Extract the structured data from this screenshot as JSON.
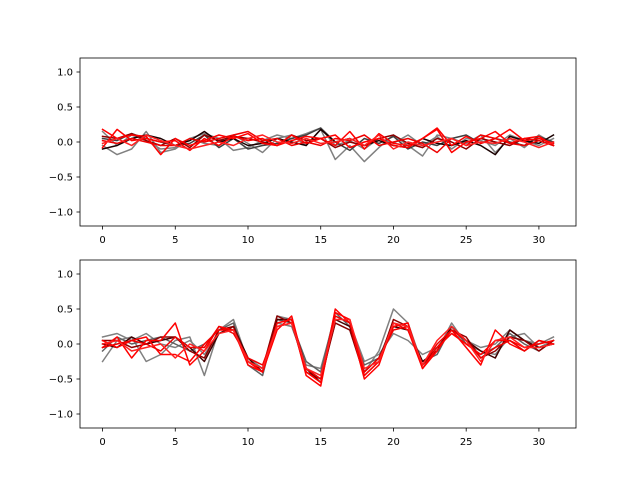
{
  "chart_data": [
    {
      "type": "line",
      "title": "",
      "xlabel": "",
      "ylabel": "",
      "xlim": [
        -1.55,
        32.55
      ],
      "ylim": [
        -1.2,
        1.2
      ],
      "xticks": [
        0,
        5,
        10,
        15,
        20,
        25,
        30
      ],
      "yticks": [
        -1.0,
        -0.5,
        0.0,
        0.5,
        1.0
      ],
      "xtick_labels": [
        "0",
        "5",
        "10",
        "15",
        "20",
        "25",
        "30"
      ],
      "ytick_labels": [
        "−1.0",
        "−0.5",
        "0.0",
        "0.5",
        "1.0"
      ],
      "x": [
        0,
        1,
        2,
        3,
        4,
        5,
        6,
        7,
        8,
        9,
        10,
        11,
        12,
        13,
        14,
        15,
        16,
        17,
        18,
        19,
        20,
        21,
        22,
        23,
        24,
        25,
        26,
        27,
        28,
        29,
        30,
        31
      ],
      "series": [
        {
          "color": "#808080",
          "values": [
            0.15,
            -0.05,
            0.1,
            0.02,
            -0.1,
            -0.08,
            0.05,
            0.12,
            0.05,
            -0.12,
            -0.08,
            0.02,
            0.1,
            0.05,
            0.12,
            0.2,
            -0.05,
            0.02,
            -0.1,
            0.05,
            -0.02,
            0.1,
            -0.05,
            0.08,
            -0.1,
            0.05,
            0.02,
            -0.05,
            0.1,
            0.02,
            -0.05,
            0.05
          ]
        },
        {
          "color": "#808080",
          "values": [
            -0.05,
            -0.18,
            -0.1,
            0.15,
            -0.15,
            -0.1,
            0.05,
            -0.02,
            -0.05,
            0.1,
            -0.02,
            -0.15,
            0.05,
            0.1,
            -0.05,
            0.18,
            -0.25,
            -0.05,
            -0.28,
            -0.08,
            0.1,
            -0.05,
            -0.2,
            0.1,
            0.05,
            -0.02,
            0.1,
            -0.15,
            0.05,
            -0.08,
            0.1,
            -0.02
          ]
        },
        {
          "color": "#404040",
          "values": [
            0.05,
            0.02,
            0.12,
            0.05,
            0.0,
            -0.05,
            -0.02,
            0.1,
            -0.08,
            0.05,
            -0.1,
            -0.05,
            -0.02,
            0.05,
            0.1,
            0.2,
            0.0,
            -0.12,
            0.05,
            -0.02,
            0.08,
            -0.1,
            0.0,
            -0.05,
            0.05,
            0.1,
            -0.02,
            0.05,
            0.0,
            -0.05,
            0.08,
            0.0
          ]
        },
        {
          "color": "#1a0000",
          "values": [
            -0.1,
            -0.05,
            0.05,
            0.1,
            0.05,
            -0.05,
            0.02,
            0.15,
            0.0,
            0.05,
            -0.05,
            -0.02,
            0.05,
            0.0,
            -0.05,
            0.18,
            0.0,
            0.05,
            -0.05,
            0.02,
            -0.05,
            -0.08,
            0.05,
            -0.02,
            -0.05,
            0.02,
            -0.05,
            -0.18,
            0.08,
            0.02,
            -0.02,
            0.1
          ]
        },
        {
          "color": "#8b0000",
          "values": [
            0.08,
            0.05,
            0.12,
            0.02,
            -0.05,
            0.05,
            -0.08,
            0.1,
            0.02,
            0.08,
            0.05,
            0.0,
            -0.05,
            0.1,
            0.02,
            0.05,
            -0.08,
            0.0,
            -0.05,
            0.05,
            0.1,
            -0.02,
            -0.08,
            0.05,
            0.0,
            -0.1,
            0.05,
            0.0,
            -0.05,
            0.05,
            0.02,
            -0.05
          ]
        },
        {
          "color": "#ff0000",
          "values": [
            0.18,
            0.05,
            0.1,
            0.08,
            -0.18,
            0.05,
            -0.05,
            0.02,
            0.1,
            0.05,
            0.12,
            -0.02,
            -0.05,
            0.02,
            0.08,
            0.05,
            -0.05,
            0.15,
            -0.1,
            0.12,
            -0.02,
            -0.05,
            0.05,
            0.2,
            -0.05,
            0.08,
            -0.02,
            0.05,
            0.18,
            0.02,
            0.05,
            -0.02
          ]
        },
        {
          "color": "#ff0000",
          "values": [
            -0.08,
            0.18,
            0.02,
            0.05,
            0.0,
            0.02,
            -0.12,
            0.05,
            -0.05,
            0.08,
            0.02,
            0.05,
            -0.05,
            0.1,
            -0.02,
            0.05,
            0.1,
            -0.08,
            0.0,
            0.05,
            -0.05,
            -0.08,
            0.05,
            0.18,
            -0.15,
            0.0,
            0.05,
            0.15,
            -0.02,
            0.05,
            0.08,
            -0.05
          ]
        },
        {
          "color": "#ee0000",
          "values": [
            0.02,
            -0.02,
            0.05,
            0.0,
            -0.05,
            -0.05,
            0.05,
            0.0,
            0.05,
            0.1,
            0.15,
            0.02,
            0.05,
            -0.05,
            0.0,
            -0.05,
            0.05,
            0.02,
            0.1,
            -0.05,
            0.0,
            0.05,
            -0.02,
            -0.15,
            0.05,
            -0.05,
            0.1,
            0.05,
            -0.02,
            -0.05,
            0.02,
            -0.05
          ]
        },
        {
          "color": "#ff2020",
          "values": [
            -0.02,
            0.05,
            -0.05,
            0.1,
            0.02,
            -0.05,
            -0.1,
            -0.05,
            0.0,
            -0.05,
            0.05,
            0.1,
            0.0,
            -0.02,
            0.05,
            -0.02,
            0.0,
            0.05,
            -0.05,
            0.1,
            -0.1,
            0.0,
            -0.05,
            0.0,
            0.05,
            -0.05,
            0.0,
            -0.02,
            0.05,
            0.0,
            -0.08,
            0.0
          ]
        }
      ]
    },
    {
      "type": "line",
      "title": "",
      "xlabel": "",
      "ylabel": "",
      "xlim": [
        -1.55,
        32.55
      ],
      "ylim": [
        -1.2,
        1.2
      ],
      "xticks": [
        0,
        5,
        10,
        15,
        20,
        25,
        30
      ],
      "yticks": [
        -1.0,
        -0.5,
        0.0,
        0.5,
        1.0
      ],
      "xtick_labels": [
        "0",
        "5",
        "10",
        "15",
        "20",
        "25",
        "30"
      ],
      "ytick_labels": [
        "−1.0",
        "−0.5",
        "0.0",
        "0.5",
        "1.0"
      ],
      "x": [
        0,
        1,
        2,
        3,
        4,
        5,
        6,
        7,
        8,
        9,
        10,
        11,
        12,
        13,
        14,
        15,
        16,
        17,
        18,
        19,
        20,
        21,
        22,
        23,
        24,
        25,
        26,
        27,
        28,
        29,
        30,
        31
      ],
      "series": [
        {
          "color": "#808080",
          "values": [
            -0.25,
            0.05,
            0.1,
            -0.25,
            -0.15,
            0.05,
            0.1,
            -0.45,
            0.2,
            0.35,
            -0.25,
            -0.4,
            0.4,
            0.35,
            -0.35,
            -0.45,
            0.3,
            0.2,
            -0.4,
            -0.1,
            0.5,
            0.3,
            -0.3,
            -0.1,
            0.3,
            0.0,
            -0.1,
            -0.15,
            0.1,
            0.15,
            -0.05,
            0.05
          ]
        },
        {
          "color": "#808080",
          "values": [
            0.1,
            0.15,
            0.05,
            0.15,
            0.0,
            -0.05,
            0.05,
            -0.15,
            0.15,
            0.25,
            -0.2,
            -0.35,
            0.3,
            0.25,
            -0.3,
            -0.35,
            0.4,
            0.3,
            -0.25,
            -0.15,
            0.15,
            0.05,
            -0.15,
            -0.05,
            0.15,
            0.05,
            -0.05,
            0.0,
            0.2,
            0.05,
            0.0,
            0.1
          ]
        },
        {
          "color": "#606060",
          "values": [
            -0.1,
            0.1,
            0.0,
            0.05,
            0.1,
            0.0,
            -0.1,
            0.0,
            0.2,
            0.3,
            -0.3,
            -0.45,
            0.35,
            0.3,
            -0.25,
            -0.4,
            0.45,
            0.25,
            -0.3,
            -0.2,
            0.3,
            0.2,
            -0.25,
            -0.15,
            0.25,
            0.0,
            -0.15,
            -0.05,
            0.15,
            0.0,
            -0.1,
            0.05
          ]
        },
        {
          "color": "#400000",
          "values": [
            0.0,
            -0.05,
            0.1,
            0.0,
            0.05,
            0.1,
            -0.05,
            -0.25,
            0.15,
            0.25,
            -0.2,
            -0.4,
            0.35,
            0.35,
            -0.35,
            -0.55,
            0.35,
            0.25,
            -0.4,
            -0.2,
            0.25,
            0.2,
            -0.25,
            -0.1,
            0.25,
            0.05,
            -0.1,
            -0.2,
            0.2,
            0.05,
            -0.05,
            0.0
          ]
        },
        {
          "color": "#8b0000",
          "values": [
            0.05,
            0.05,
            -0.05,
            0.0,
            0.1,
            0.1,
            -0.1,
            -0.2,
            0.2,
            0.25,
            -0.25,
            -0.35,
            0.4,
            0.3,
            -0.4,
            -0.5,
            0.3,
            0.2,
            -0.45,
            -0.25,
            0.35,
            0.25,
            -0.3,
            -0.05,
            0.2,
            0.1,
            -0.2,
            -0.1,
            0.1,
            0.05,
            -0.1,
            0.05
          ]
        },
        {
          "color": "#ff0000",
          "values": [
            -0.05,
            0.1,
            -0.2,
            0.05,
            0.05,
            0.3,
            -0.3,
            -0.1,
            0.25,
            0.2,
            -0.25,
            -0.4,
            0.2,
            0.4,
            -0.4,
            -0.55,
            0.5,
            0.3,
            -0.5,
            -0.3,
            0.3,
            0.2,
            -0.35,
            -0.1,
            0.2,
            -0.05,
            -0.3,
            0.2,
            0.0,
            -0.1,
            0.05,
            0.0
          ]
        },
        {
          "color": "#ff0000",
          "values": [
            0.05,
            -0.05,
            0.05,
            0.1,
            -0.15,
            -0.15,
            -0.25,
            0.0,
            0.2,
            0.2,
            -0.3,
            -0.4,
            0.3,
            0.35,
            -0.45,
            -0.6,
            0.45,
            0.35,
            -0.45,
            -0.25,
            0.25,
            0.3,
            -0.35,
            -0.05,
            0.15,
            0.0,
            -0.15,
            0.05,
            0.05,
            -0.05,
            0.0,
            0.05
          ]
        },
        {
          "color": "#ee0000",
          "values": [
            -0.05,
            0.0,
            0.05,
            0.0,
            -0.1,
            0.1,
            -0.05,
            -0.05,
            0.25,
            0.15,
            -0.2,
            -0.3,
            0.25,
            0.3,
            -0.35,
            -0.5,
            0.4,
            0.3,
            -0.4,
            -0.2,
            0.2,
            0.25,
            -0.3,
            0.0,
            0.2,
            0.05,
            -0.2,
            -0.05,
            0.05,
            -0.1,
            0.05,
            0.0
          ]
        },
        {
          "color": "#ff2020",
          "values": [
            0.0,
            0.05,
            -0.1,
            -0.05,
            0.0,
            -0.2,
            0.0,
            -0.1,
            0.15,
            0.2,
            -0.25,
            -0.35,
            0.25,
            0.3,
            -0.35,
            -0.45,
            0.35,
            0.35,
            -0.35,
            -0.25,
            0.3,
            0.25,
            -0.3,
            0.05,
            0.25,
            0.05,
            -0.25,
            0.05,
            0.1,
            -0.05,
            -0.05,
            0.0
          ]
        }
      ]
    }
  ]
}
